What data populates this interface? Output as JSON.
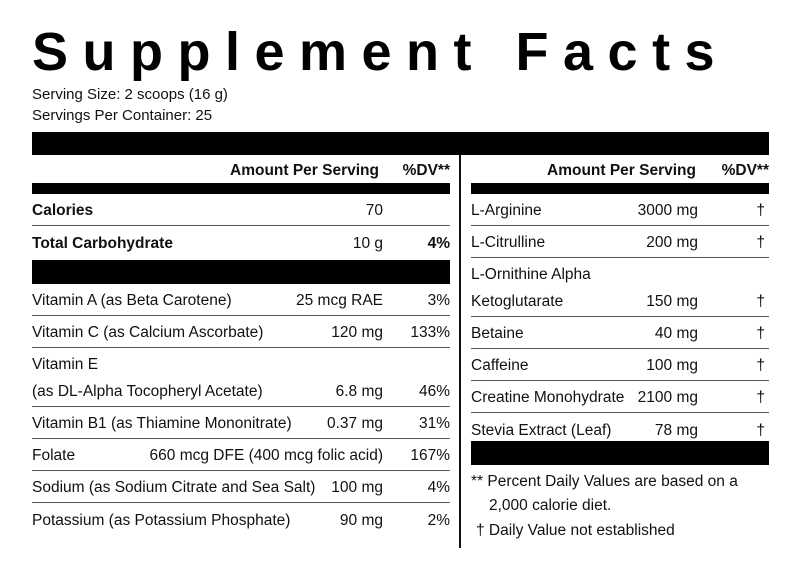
{
  "title": "Supplement Facts",
  "serving_size": "Serving Size: 2 scoops (16 g)",
  "servings_per_container": "Servings Per Container: 25",
  "left": {
    "header_amount": "Amount Per Serving",
    "header_dv": "%DV**",
    "calories": {
      "name": "Calories",
      "amount": "70"
    },
    "carbs": {
      "name": "Total Carbohydrate",
      "amount": "10 g",
      "dv": "4%"
    },
    "vit_a": {
      "name": "Vitamin A (as Beta Carotene)",
      "amount": "25 mcg RAE",
      "dv": "3%"
    },
    "vit_c": {
      "name": "Vitamin C (as Calcium Ascorbate)",
      "amount": "120 mg",
      "dv": "133%"
    },
    "vit_e": {
      "name1": "Vitamin E",
      "name2": "(as DL-Alpha Tocopheryl Acetate)",
      "amount": "6.8 mg",
      "dv": "46%"
    },
    "vit_b1": {
      "name": "Vitamin B1 (as Thiamine Mononitrate)",
      "amount": "0.37 mg",
      "dv": "31%"
    },
    "folate": {
      "name": "Folate",
      "amount": "660 mcg DFE (400 mcg folic acid)",
      "dv": "167%"
    },
    "sodium": {
      "name": "Sodium (as Sodium Citrate and Sea Salt)",
      "amount": "100 mg",
      "dv": "4%"
    },
    "potassium": {
      "name": "Potassium (as Potassium Phosphate)",
      "amount": "90 mg",
      "dv": "2%"
    }
  },
  "right": {
    "header_amount": "Amount Per Serving",
    "header_dv": "%DV**",
    "arginine": {
      "name": "L-Arginine",
      "amount": "3000 mg",
      "dv": "†"
    },
    "citrulline": {
      "name": "L-Citrulline",
      "amount": "200 mg",
      "dv": "†"
    },
    "ornithine": {
      "name1": "L-Ornithine Alpha",
      "name2": "Ketoglutarate",
      "amount": "150 mg",
      "dv": "†"
    },
    "betaine": {
      "name": "Betaine",
      "amount": "40 mg",
      "dv": "†"
    },
    "caffeine": {
      "name": "Caffeine",
      "amount": "100 mg",
      "dv": "†"
    },
    "creatine": {
      "name": "Creatine Monohydrate",
      "amount": "2100 mg",
      "dv": "†"
    },
    "stevia": {
      "name": "Stevia Extract (Leaf)",
      "amount": "78 mg",
      "dv": "†"
    }
  },
  "footnotes": {
    "line1": "** Percent Daily Values are based on a",
    "line2": "2,000 calorie diet.",
    "line3": "† Daily Value not established"
  }
}
